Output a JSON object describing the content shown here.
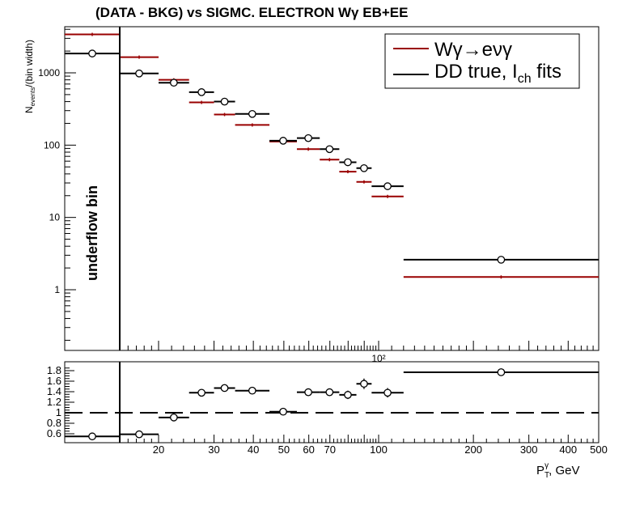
{
  "chart_data": {
    "type": "scatter",
    "title": "(DATA - BKG) vs SIGMC. ELECTRON Wγ  EB+EE",
    "xlabel": "P_T^γ, GeV",
    "ylabel": "N_events/(bin width)",
    "x_log": true,
    "y_log": true,
    "ylim": [
      0.15,
      4000
    ],
    "underflow_label": "underflow bin",
    "x_tick_labels": [
      "20",
      "30",
      "40",
      "50",
      "60",
      "70",
      "100",
      "200",
      "300",
      "400",
      "500"
    ],
    "x_axis_exponent_label": "10²",
    "y_tick_labels": [
      "1",
      "10",
      "100",
      "1000"
    ],
    "legend": {
      "position": "top-right",
      "entries": [
        {
          "label": "Wγ→eνγ",
          "color": "#990000",
          "series": "mc"
        },
        {
          "label": "DD true, I_ch fits",
          "color": "#000000",
          "series": "data"
        }
      ]
    },
    "bins": [
      {
        "lo": "underflow",
        "hi": 15
      },
      {
        "lo": 15,
        "hi": 20
      },
      {
        "lo": 20,
        "hi": 25
      },
      {
        "lo": 25,
        "hi": 30
      },
      {
        "lo": 30,
        "hi": 35
      },
      {
        "lo": 35,
        "hi": 45
      },
      {
        "lo": 45,
        "hi": 55
      },
      {
        "lo": 55,
        "hi": 65
      },
      {
        "lo": 65,
        "hi": 75
      },
      {
        "lo": 75,
        "hi": 85
      },
      {
        "lo": 85,
        "hi": 95
      },
      {
        "lo": 95,
        "hi": 120
      },
      {
        "lo": 120,
        "hi": 500
      }
    ],
    "series": [
      {
        "name": "DD true, I_ch fits",
        "color": "#000000",
        "values": [
          1850,
          980,
          730,
          540,
          400,
          270,
          115,
          125,
          88,
          58,
          48,
          27,
          2.6
        ]
      },
      {
        "name": "Wγ→eνγ",
        "color": "#990000",
        "values": [
          3400,
          1650,
          800,
          390,
          265,
          190,
          112,
          88,
          63,
          43,
          31,
          19.5,
          1.5
        ]
      }
    ],
    "ratio": {
      "ylim": [
        0.5,
        1.85
      ],
      "y_tick_labels": [
        "0.6",
        "0.8",
        "1",
        "1.2",
        "1.4",
        "1.6",
        "1.8"
      ],
      "reference_line": 1,
      "values": [
        0.55,
        0.59,
        0.91,
        1.38,
        1.47,
        1.42,
        1.02,
        1.39,
        1.39,
        1.34,
        1.55,
        1.38,
        1.77
      ],
      "errors": [
        0.0,
        0.0,
        0.0,
        0.04,
        0.05,
        0.03,
        0.03,
        0.07,
        0.07,
        0.08,
        0.1,
        0.09,
        0.07
      ]
    }
  }
}
